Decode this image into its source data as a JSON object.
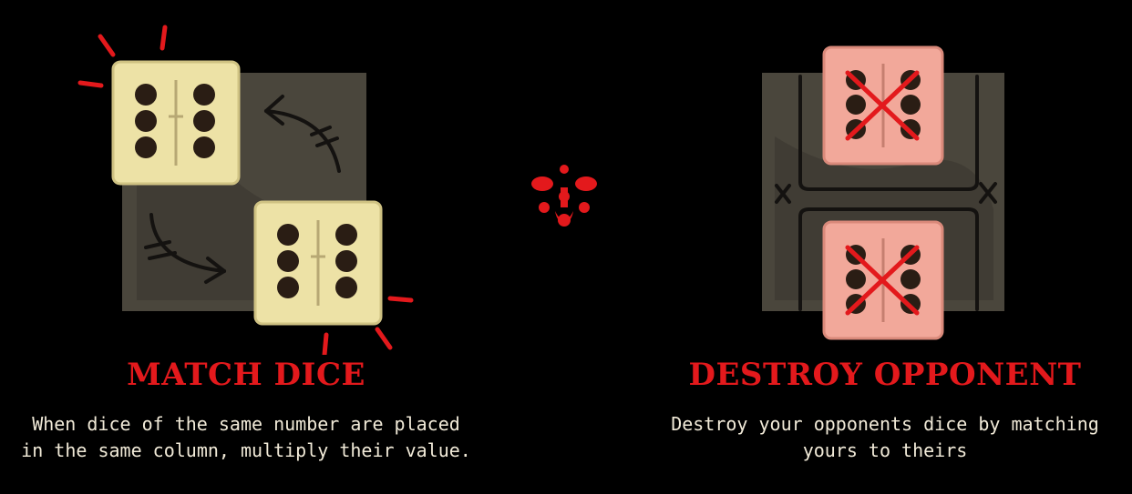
{
  "panels": [
    {
      "title": "MATCH DICE",
      "description_lines": [
        "When dice of the same number are placed",
        "in the same column, multiply their value."
      ],
      "dice": [
        {
          "value": 6,
          "state": "highlighted"
        },
        {
          "value": 6,
          "state": "highlighted"
        }
      ],
      "die_color": "#ede2a6"
    },
    {
      "title": "DESTROY OPPONENT",
      "description_lines": [
        "Destroy your opponents dice by matching",
        "yours to theirs"
      ],
      "dice": [
        {
          "value": 6,
          "state": "destroyed"
        },
        {
          "value": 6,
          "state": "destroyed"
        }
      ],
      "die_color": "#f2a89a"
    }
  ],
  "colors": {
    "accent": "#e3191c",
    "text": "#f1ead8",
    "board": "#4a463c",
    "pip": "#2a1d14"
  },
  "icons": [
    "spark-icon",
    "swap-arrow-icon",
    "cult-emblem-icon",
    "cross-mark-icon"
  ]
}
